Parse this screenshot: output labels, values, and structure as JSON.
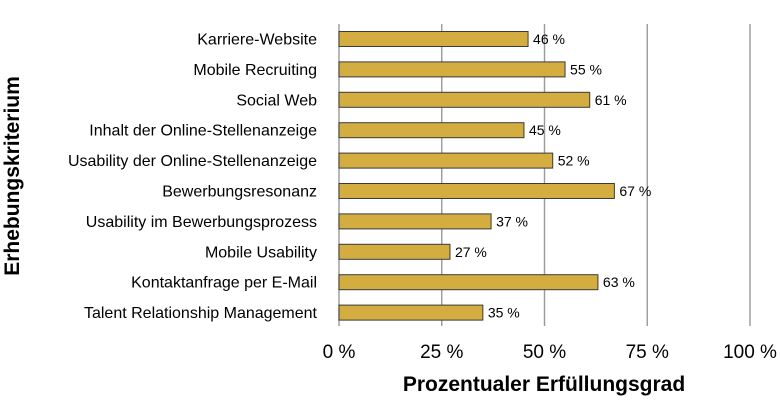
{
  "chart_data": {
    "type": "bar",
    "orientation": "horizontal",
    "categories": [
      "Karriere-Website",
      "Mobile Recruiting",
      "Social Web",
      "Inhalt der Online-Stellenanzeige",
      "Usability der Online-Stellenanzeige",
      "Bewerbungsresonanz",
      "Usability im Bewerbungsprozess",
      "Mobile Usability",
      "Kontaktanfrage per E-Mail",
      "Talent Relationship Management"
    ],
    "values": [
      46,
      55,
      61,
      45,
      52,
      67,
      37,
      27,
      63,
      35
    ],
    "value_labels": [
      "46 %",
      "55 %",
      "61 %",
      "45 %",
      "52 %",
      "67 %",
      "37 %",
      "27 %",
      "63 %",
      "35 %"
    ],
    "xlabel": "Prozentualer Erfüllungsgrad",
    "ylabel": "Erhebungskriterium",
    "xlim": [
      0,
      100
    ],
    "xticks": [
      0,
      25,
      50,
      75,
      100
    ],
    "xtick_labels": [
      "0 %",
      "25 %",
      "50 %",
      "75 %",
      "100 %"
    ],
    "grid": "vertical",
    "legend": "none",
    "colors": {
      "bar_fill": "#d4ad41",
      "bar_stroke": "#3a3a3a",
      "grid": "#9a9a9a",
      "text": "#000000"
    }
  }
}
